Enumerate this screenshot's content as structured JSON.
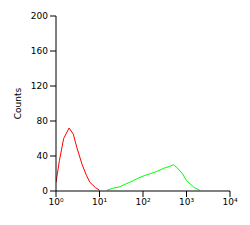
{
  "chart_data": {
    "type": "line",
    "y_label": "Counts",
    "log": "x",
    "grid": false,
    "x": [
      1,
      1.2,
      1.5,
      2,
      2.5,
      3,
      4,
      5,
      6,
      8,
      10,
      15,
      20,
      30,
      40,
      50,
      60,
      80,
      100,
      150,
      200,
      300,
      400,
      500,
      600,
      800,
      1000,
      1500,
      2000
    ],
    "series": [
      {
        "color": "#ff0000",
        "values": [
          10,
          35,
          60,
          72,
          65,
          50,
          30,
          18,
          10,
          4,
          1,
          null,
          null,
          null,
          null,
          null,
          null,
          null,
          null,
          null,
          null,
          null,
          null,
          null,
          null,
          null,
          null,
          null,
          null
        ]
      },
      {
        "color": "#00ff00",
        "values": [
          null,
          null,
          null,
          null,
          null,
          null,
          null,
          null,
          null,
          null,
          null,
          1,
          3,
          5,
          8,
          10,
          12,
          15,
          17,
          20,
          22,
          26,
          28,
          30,
          27,
          20,
          12,
          4,
          1
        ]
      }
    ],
    "xlim": [
      1,
      10000
    ],
    "xticks": [
      {
        "value": 1,
        "label": "10⁰"
      },
      {
        "value": 10,
        "label": "10¹"
      },
      {
        "value": 100,
        "label": "10²"
      },
      {
        "value": 1000,
        "label": "10³"
      },
      {
        "value": 10000,
        "label": "10⁴"
      }
    ],
    "ylim": [
      0,
      200
    ],
    "yticks": [
      0,
      40,
      80,
      120,
      160,
      200
    ]
  }
}
